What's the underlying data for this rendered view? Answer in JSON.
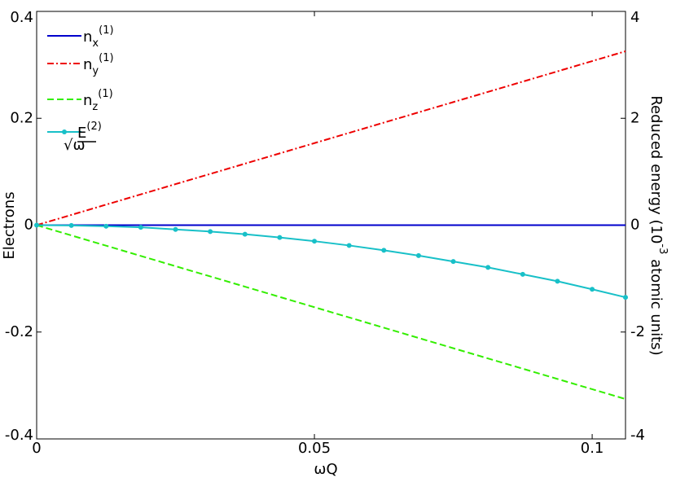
{
  "chart_data": {
    "type": "line",
    "xlabel": "ωQ",
    "ylabel": "Electrons",
    "y2label": "Reduced energy  (10^-3 atomic units)",
    "x": [
      0,
      0.00625,
      0.0125,
      0.01875,
      0.025,
      0.03125,
      0.0375,
      0.04375,
      0.05,
      0.05625,
      0.0625,
      0.06875,
      0.075,
      0.08125,
      0.0875,
      0.09375,
      0.1,
      0.106
    ],
    "series": [
      {
        "name": "n_x^(1)",
        "color": "#0000cc",
        "dash": "solid",
        "axis": "y",
        "values": [
          0,
          0,
          0,
          0,
          0,
          0,
          0,
          0,
          0,
          0,
          0,
          0,
          0,
          0,
          0,
          0,
          0,
          0
        ]
      },
      {
        "name": "n_y^(1)",
        "color": "#ee0000",
        "dash": "dashdot",
        "axis": "y",
        "values": [
          0,
          0.0192,
          0.0384,
          0.0576,
          0.0768,
          0.0959,
          0.1151,
          0.1343,
          0.1535,
          0.1727,
          0.1919,
          0.2111,
          0.2303,
          0.2494,
          0.2686,
          0.2878,
          0.307,
          0.3254
        ]
      },
      {
        "name": "n_z^(1)",
        "color": "#33ee00",
        "dash": "dashed",
        "axis": "y",
        "values": [
          0,
          -0.0192,
          -0.0384,
          -0.0576,
          -0.0768,
          -0.0959,
          -0.1151,
          -0.1343,
          -0.1535,
          -0.1727,
          -0.1919,
          -0.2111,
          -0.2303,
          -0.2494,
          -0.2686,
          -0.2878,
          -0.307,
          -0.3254
        ]
      },
      {
        "name": "E^(2)/√ω",
        "color": "#18c0c8",
        "dash": "solid",
        "axis": "y2",
        "marker": true,
        "values": [
          0,
          -0.005,
          -0.02,
          -0.04,
          -0.08,
          -0.12,
          -0.17,
          -0.23,
          -0.3,
          -0.38,
          -0.47,
          -0.57,
          -0.68,
          -0.79,
          -0.92,
          -1.05,
          -1.2,
          -1.35
        ]
      }
    ],
    "xlim": [
      0,
      0.106
    ],
    "xticks": [
      0,
      0.05,
      0.1
    ],
    "ylim": [
      -0.4,
      0.4
    ],
    "yticks": [
      -0.4,
      -0.2,
      0,
      0.2,
      0.4
    ],
    "y2lim": [
      -4,
      4
    ],
    "y2ticks": [
      -4,
      -2,
      0,
      2,
      4
    ],
    "legend": "upper-left"
  }
}
